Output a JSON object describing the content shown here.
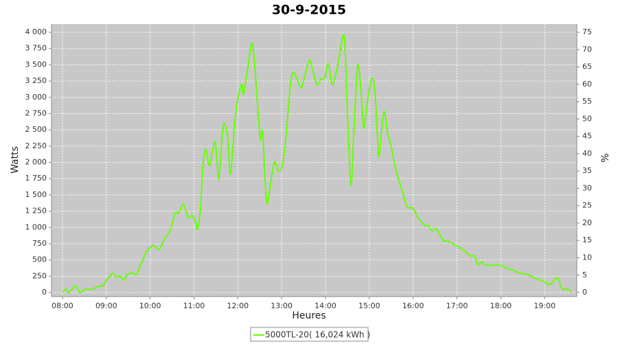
{
  "chart_data": {
    "type": "line",
    "title": "30-9-2015",
    "xlabel": "Heures",
    "ylabel": "Watts",
    "y2label": "%",
    "x": [
      "08:00",
      "08:05",
      "08:09",
      "08:18",
      "08:24",
      "08:31",
      "08:40",
      "08:51",
      "08:55",
      "09:01",
      "09:09",
      "09:14",
      "09:19",
      "09:24",
      "09:29",
      "09:36",
      "09:42",
      "09:46",
      "09:55",
      "10:01",
      "10:05",
      "10:11",
      "10:15",
      "10:20",
      "10:25",
      "10:29",
      "10:34",
      "10:39",
      "10:45",
      "10:49",
      "10:53",
      "10:58",
      "11:03",
      "11:05",
      "11:09",
      "11:12",
      "11:16",
      "11:21",
      "11:25",
      "11:29",
      "11:31",
      "11:34",
      "11:38",
      "11:41",
      "11:46",
      "11:50",
      "11:55",
      "11:59",
      "12:05",
      "12:08",
      "12:13",
      "12:19",
      "12:22",
      "12:27",
      "12:31",
      "12:34",
      "12:37",
      "12:40",
      "12:44",
      "12:50",
      "12:56",
      "13:01",
      "13:06",
      "13:12",
      "13:17",
      "13:26",
      "13:31",
      "13:38",
      "13:42",
      "13:48",
      "13:54",
      "13:59",
      "14:04",
      "14:09",
      "14:16",
      "14:24",
      "14:27",
      "14:31",
      "14:35",
      "14:39",
      "14:44",
      "14:48",
      "14:52",
      "14:55",
      "14:59",
      "15:04",
      "15:08",
      "15:12",
      "15:14",
      "15:20",
      "15:25",
      "15:30",
      "15:36",
      "15:44",
      "15:52",
      "15:59",
      "16:07",
      "16:16",
      "16:21",
      "16:26",
      "16:31",
      "16:36",
      "16:41",
      "16:47",
      "16:59",
      "17:09",
      "17:19",
      "17:24",
      "17:29",
      "17:33",
      "17:40",
      "17:59",
      "18:07",
      "18:15",
      "18:26",
      "18:38",
      "18:47",
      "18:57",
      "19:07",
      "19:14",
      "19:18",
      "19:24",
      "19:32",
      "19:36"
    ],
    "series": [
      {
        "name": "5000TL-20( 16,024 kWh )",
        "color": "#66ff00",
        "values": [
          0,
          50,
          0,
          100,
          0,
          50,
          50,
          100,
          100,
          200,
          290,
          240,
          250,
          190,
          280,
          300,
          280,
          400,
          620,
          700,
          720,
          660,
          700,
          830,
          900,
          1000,
          1220,
          1220,
          1360,
          1250,
          1150,
          1180,
          1050,
          980,
          1300,
          1900,
          2200,
          1950,
          2150,
          2320,
          2100,
          1750,
          2300,
          2600,
          2400,
          1820,
          2500,
          2900,
          3200,
          3050,
          3400,
          3820,
          3650,
          2900,
          2350,
          2480,
          1800,
          1370,
          1600,
          2000,
          1870,
          1950,
          2400,
          3200,
          3380,
          3150,
          3300,
          3570,
          3450,
          3200,
          3280,
          3300,
          3520,
          3200,
          3450,
          3950,
          3700,
          2500,
          1650,
          2500,
          3480,
          3200,
          2550,
          2700,
          3050,
          3300,
          3050,
          2200,
          2150,
          2780,
          2450,
          2250,
          1900,
          1600,
          1320,
          1300,
          1150,
          1030,
          1030,
          950,
          980,
          900,
          800,
          790,
          720,
          650,
          560,
          560,
          420,
          470,
          420,
          420,
          380,
          350,
          300,
          270,
          220,
          180,
          120,
          200,
          220,
          60,
          50,
          0
        ]
      }
    ],
    "xlim": [
      "07:45",
      "19:44"
    ],
    "xticks": [
      "08:00",
      "09:00",
      "10:00",
      "11:00",
      "12:00",
      "13:00",
      "14:00",
      "15:00",
      "16:00",
      "17:00",
      "18:00",
      "19:00"
    ],
    "ylim": [
      -63,
      4127
    ],
    "yticks": [
      0,
      250,
      500,
      750,
      {
        "value": 1000,
        "label": "1 000"
      },
      {
        "value": 1250,
        "label": "1 250"
      },
      {
        "value": 1500,
        "label": "1 500"
      },
      {
        "value": 1750,
        "label": "1 750"
      },
      {
        "value": 2000,
        "label": "2 000"
      },
      {
        "value": 2250,
        "label": "2 250"
      },
      {
        "value": 2500,
        "label": "2 500"
      },
      {
        "value": 2750,
        "label": "2 750"
      },
      {
        "value": 3000,
        "label": "3 000"
      },
      {
        "value": 3250,
        "label": "3 250"
      },
      {
        "value": 3500,
        "label": "3 500"
      },
      {
        "value": 3750,
        "label": "3 750"
      },
      {
        "value": 4000,
        "label": "4 000"
      }
    ],
    "y2lim": [
      -1.18,
      77.38
    ],
    "y2ticks": [
      0,
      5,
      10,
      15,
      20,
      25,
      30,
      35,
      40,
      45,
      50,
      55,
      60,
      65,
      70,
      75
    ],
    "grid": true,
    "legend": "bottom"
  }
}
